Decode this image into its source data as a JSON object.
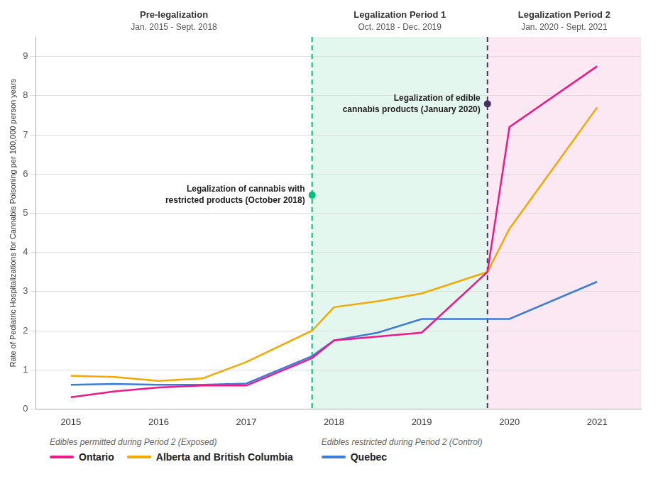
{
  "chart_data": {
    "type": "line",
    "y_label": "Rate of Pediatric Hospitalizations for Cannabis Poisoning per 100,000 person years",
    "x": [
      2015,
      2015.5,
      2016,
      2016.5,
      2017,
      2017.75,
      2018,
      2018.5,
      2019,
      2019.75,
      2020,
      2021
    ],
    "series": [
      {
        "name": "Ontario",
        "color": "#f0198a",
        "values": [
          0.3,
          0.45,
          0.55,
          0.6,
          0.6,
          1.3,
          1.75,
          1.85,
          1.95,
          3.5,
          7.2,
          8.75
        ]
      },
      {
        "name": "Alberta and British Columbia",
        "color": "#f5a800",
        "values": [
          0.85,
          0.82,
          0.72,
          0.78,
          1.2,
          2.0,
          2.6,
          2.75,
          2.95,
          3.5,
          4.6,
          7.7
        ]
      },
      {
        "name": "Quebec",
        "color": "#3b7dd8",
        "values": [
          0.62,
          0.64,
          0.62,
          0.62,
          0.65,
          1.35,
          1.75,
          1.95,
          2.3,
          2.3,
          2.3,
          3.25
        ]
      }
    ],
    "xlim": [
      2014.6,
      2021.5
    ],
    "ylim": [
      0.0,
      9.5
    ],
    "xticks": [
      2015,
      2016,
      2017,
      2018,
      2019,
      2020,
      2021
    ],
    "yticks": [
      0,
      1,
      2,
      3,
      4,
      5,
      6,
      7,
      8,
      9
    ],
    "grid": true,
    "legend": "bottom",
    "legend_groups": [
      {
        "text": "Edibles permitted during Period 2 (Exposed)",
        "series": [
          "Ontario",
          "Alberta and British Columbia"
        ]
      },
      {
        "text": "Edibles restricted during Period 2 (Control)",
        "series": [
          "Quebec"
        ]
      }
    ],
    "periods": [
      {
        "label": "Pre-legalization",
        "dates": "Jan. 2015 - Sept. 2018",
        "start": 2014.6,
        "end": 2017.75
      },
      {
        "label": "Legalization Period 1",
        "dates": "Oct. 2018 - Dec. 2019",
        "start": 2017.75,
        "end": 2019.75,
        "color": "#e4f7ee"
      },
      {
        "label": "Legalization Period 2",
        "dates": "Jan. 2020 - Sept. 2021",
        "start": 2019.75,
        "end": 2021.5,
        "color": "#fce8f2"
      }
    ],
    "events": [
      {
        "x": 2017.75,
        "text": "Legalization of cannabis with\nrestricted products (October 2018)",
        "color": "#00c17a"
      },
      {
        "x": 2019.75,
        "text": "Legalization of edible\ncannabis products (January 2020)",
        "color": "#4a3060"
      }
    ]
  }
}
